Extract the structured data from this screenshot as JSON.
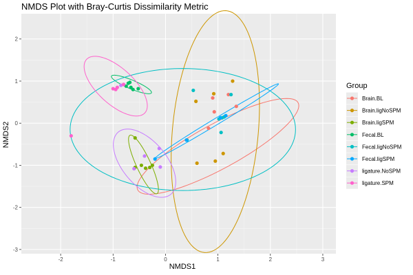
{
  "chart_data": {
    "type": "scatter",
    "title": "NMDS Plot with Bray-Curtis Dissimilarity Metric",
    "xlabel": "NMDS1",
    "ylabel": "NMDS2",
    "xlim": [
      -2.75,
      3.25
    ],
    "ylim": [
      -3.1,
      2.6
    ],
    "xticks": [
      -2,
      -1,
      0,
      1,
      2,
      3
    ],
    "yticks": [
      -3,
      -2,
      -1,
      0,
      1,
      2
    ],
    "grid": true,
    "legend": {
      "title": "Group",
      "position": "right"
    },
    "series": [
      {
        "name": "Brain.BL",
        "color": "#F8766D",
        "points": [
          [
            0.93,
            0.27
          ],
          [
            1.2,
            0.68
          ],
          [
            1.35,
            0.4
          ],
          [
            0.82,
            -0.12
          ],
          [
            0.9,
            0.6
          ]
        ],
        "ellipse": {
          "cx": 1.0,
          "cy": -0.55,
          "rx": 1.85,
          "ry": 0.5,
          "angle": 35
        }
      },
      {
        "name": "Brain.ligNoSPM",
        "color": "#CD9600",
        "points": [
          [
            0.58,
            0.52
          ],
          [
            0.92,
            0.7
          ],
          [
            1.28,
            1.0
          ],
          [
            0.6,
            -0.95
          ],
          [
            0.95,
            -0.9
          ],
          [
            1.1,
            -0.72
          ]
        ],
        "ellipse": {
          "cx": 0.95,
          "cy": -0.2,
          "rx": 0.82,
          "ry": 2.88,
          "angle": -4
        }
      },
      {
        "name": "Brain.ligSPM",
        "color": "#7CAE00",
        "points": [
          [
            -0.58,
            -0.35
          ],
          [
            -0.3,
            -1.05
          ],
          [
            -0.38,
            -1.07
          ],
          [
            -0.46,
            -1.0
          ],
          [
            -0.25,
            -1.0
          ],
          [
            -0.58,
            -1.05
          ]
        ],
        "ellipse": {
          "cx": -0.42,
          "cy": -0.98,
          "rx": 0.74,
          "ry": 0.14,
          "angle": -70
        }
      },
      {
        "name": "Fecal.BL",
        "color": "#00BE67",
        "points": [
          [
            -0.71,
            0.95
          ],
          [
            -0.68,
            0.97
          ],
          [
            -0.66,
            0.85
          ],
          [
            -0.52,
            0.82
          ],
          [
            -0.75,
            0.88
          ],
          [
            -0.62,
            0.8
          ]
        ],
        "ellipse": {
          "cx": -0.65,
          "cy": 0.92,
          "rx": 0.43,
          "ry": 0.1,
          "angle": -28
        }
      },
      {
        "name": "Fecal.ligNoSPM",
        "color": "#00BFC4",
        "points": [
          [
            0.53,
            0.78
          ],
          [
            1.25,
            0.68
          ],
          [
            1.08,
            0.13
          ],
          [
            1.12,
            0.15
          ],
          [
            1.06,
            -0.22
          ],
          [
            0.41,
            -0.4
          ],
          [
            1.02,
            0.1
          ]
        ],
        "ellipse": {
          "cx": 0.33,
          "cy": -0.15,
          "rx": 2.15,
          "ry": 1.45,
          "angle": 0
        }
      },
      {
        "name": "Fecal.ligSPM",
        "color": "#00A9FF",
        "points": [
          [
            1.05,
            0.13
          ],
          [
            1.15,
            0.18
          ],
          [
            0.4,
            -0.4
          ],
          [
            -0.2,
            -0.85
          ]
        ],
        "ellipse": {
          "cx": 0.98,
          "cy": 0.05,
          "rx": 1.47,
          "ry": 0.07,
          "angle": 37
        }
      },
      {
        "name": "ligature.NoSPM",
        "color": "#C77CFF",
        "points": [
          [
            -0.4,
            -0.78
          ],
          [
            -0.12,
            -0.6
          ],
          [
            -0.6,
            -1.08
          ],
          [
            -0.1,
            -1.04
          ],
          [
            -0.85,
            0.9
          ]
        ],
        "ellipse": {
          "cx": -0.4,
          "cy": -0.95,
          "rx": 0.9,
          "ry": 0.45,
          "angle": -60
        }
      },
      {
        "name": "ligature.SPM",
        "color": "#FF61CC",
        "points": [
          [
            -1.8,
            -0.3
          ],
          [
            -1.0,
            0.82
          ],
          [
            -0.92,
            0.85
          ],
          [
            -0.95,
            0.8
          ],
          [
            -0.8,
            0.92
          ]
        ],
        "ellipse": {
          "cx": -0.95,
          "cy": 0.88,
          "rx": 0.38,
          "ry": 0.85,
          "angle": 38
        }
      }
    ]
  }
}
